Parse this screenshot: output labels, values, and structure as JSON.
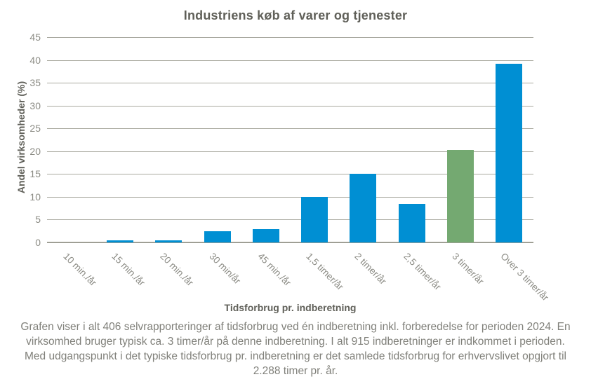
{
  "title": "Industriens køb af varer og tjenester",
  "chart_data": {
    "type": "bar",
    "title": "Industriens køb af varer og tjenester",
    "categories": [
      "10 min./år",
      "15 min./år",
      "20 min./år",
      "30 min/år",
      "45 min./år",
      "1,5 timer/år",
      "2 timer/år",
      "2,5 timer/år",
      "3 timer/år",
      "Over 3 timer/år"
    ],
    "values": [
      0,
      0.5,
      0.5,
      2.4,
      2.9,
      10,
      15,
      8.5,
      20.3,
      39.1
    ],
    "xlabel": "Tidsforbrug pr. indberetning",
    "ylabel": "Andel virksomheder (%)",
    "ylim": [
      0,
      45
    ],
    "ytick_step": 5,
    "yticks": [
      0,
      5,
      10,
      15,
      20,
      25,
      30,
      35,
      40,
      45
    ],
    "grid": true,
    "legend": "none",
    "highlight_index": 8,
    "colors": {
      "bar": "#008fd3",
      "highlight_bar": "#74a971",
      "gridline": "#a9a99f",
      "text_muted": "#8c8c85",
      "text_dark": "#5f5f58"
    }
  },
  "caption": "Grafen viser i alt 406 selvrapporteringer af tidsforbrug ved én indberetning inkl. forberedelse for perioden 2024. En virksomhed bruger typisk ca. 3 timer/år på denne indberetning. I alt 915 indberetninger er indkommet i perioden. Med udgangspunkt i det typiske tidsforbrug pr. indberetning er det samlede tidsforbrug for erhvervslivet opgjort til 2.288 timer pr. år."
}
